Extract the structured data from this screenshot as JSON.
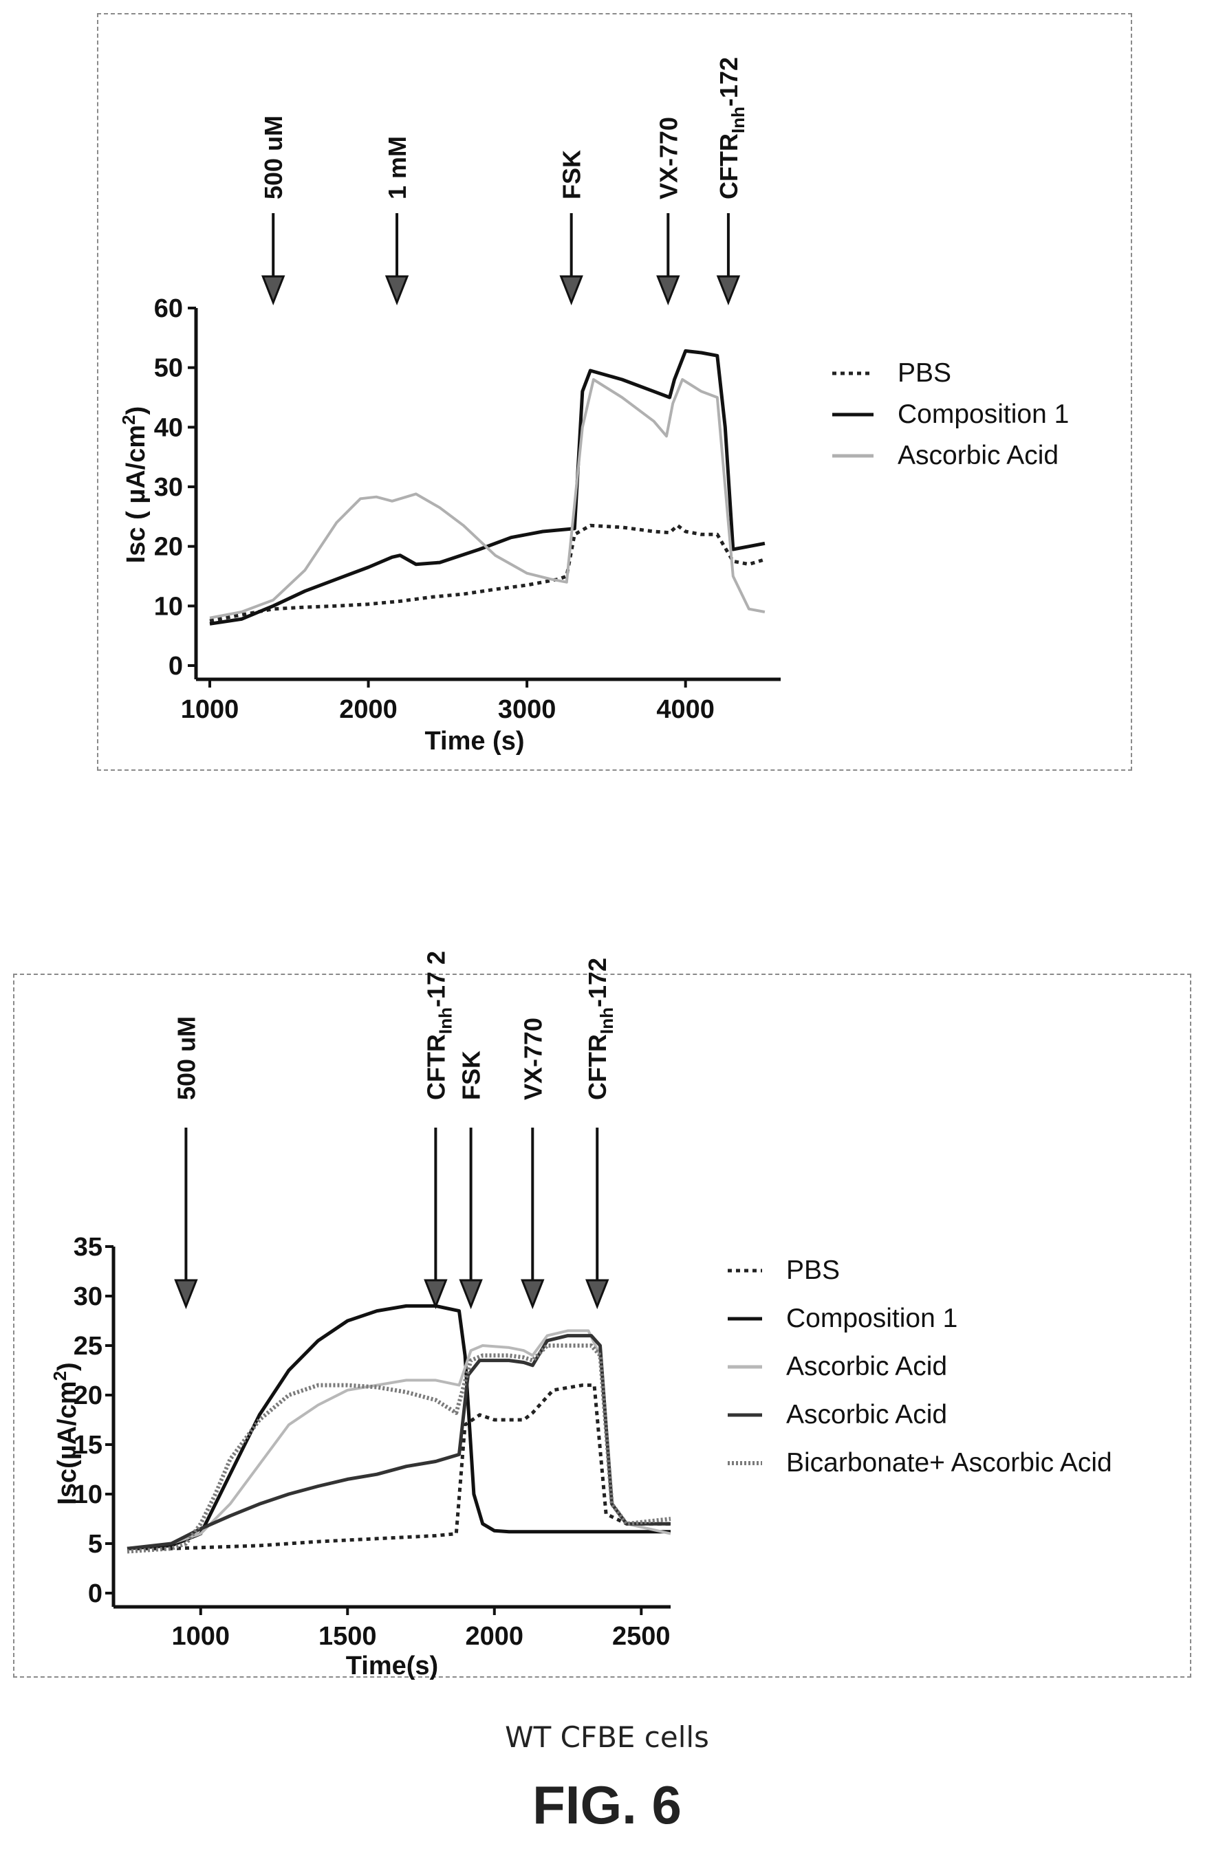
{
  "chart_data": [
    {
      "type": "line",
      "title": "",
      "xlabel": "Time (s)",
      "ylabel": "Isc ( µA/cm²)",
      "ylabel_parts": [
        "Isc ( µA/cm",
        "2",
        ")"
      ],
      "xlim": [
        1000,
        4600
      ],
      "ylim": [
        0,
        60
      ],
      "x_ticks": [
        "1000",
        "2000",
        "3000",
        "4000"
      ],
      "x_tick_values": [
        1000,
        2000,
        3000,
        4000
      ],
      "y_ticks": [
        "0",
        "10",
        "20",
        "30",
        "40",
        "50",
        "60"
      ],
      "y_tick_values": [
        0,
        10,
        20,
        30,
        40,
        50,
        60
      ],
      "grid": false,
      "legend_position": "right",
      "events": [
        {
          "label": "500 uM",
          "x": 1400
        },
        {
          "label": "1 mM",
          "x": 2180
        },
        {
          "label": "FSK",
          "x": 3280
        },
        {
          "label": "VX-770",
          "x": 3890
        },
        {
          "label": "CFTRInh-172",
          "x": 4270,
          "parts": [
            "CFTR",
            "Inh",
            "-172"
          ]
        }
      ],
      "series": [
        {
          "name": "PBS",
          "style": "dotted",
          "color": "#222222",
          "x": [
            1000,
            1200,
            1400,
            1600,
            1800,
            2000,
            2200,
            2400,
            2600,
            2800,
            3000,
            3200,
            3250,
            3300,
            3400,
            3600,
            3800,
            3900,
            3950,
            4000,
            4100,
            4200,
            4300,
            4400,
            4500
          ],
          "y": [
            7.5,
            8.5,
            9.5,
            9.8,
            10,
            10.3,
            10.8,
            11.5,
            12,
            12.8,
            13.5,
            14.5,
            15,
            22,
            23.5,
            23.2,
            22.5,
            22.3,
            23.5,
            22.5,
            22,
            22,
            17.5,
            17,
            17.8
          ]
        },
        {
          "name": "Composition 1",
          "style": "solid",
          "color": "#111111",
          "x": [
            1000,
            1200,
            1400,
            1600,
            1800,
            2000,
            2150,
            2200,
            2300,
            2450,
            2700,
            2900,
            3100,
            3300,
            3350,
            3400,
            3600,
            3800,
            3900,
            3930,
            4000,
            4100,
            4200,
            4250,
            4300,
            4400,
            4500
          ],
          "y": [
            7,
            7.8,
            10,
            12.5,
            14.5,
            16.5,
            18.2,
            18.5,
            17,
            17.3,
            19.5,
            21.5,
            22.5,
            23,
            46,
            49.5,
            48,
            46,
            45,
            48,
            52.8,
            52.5,
            52,
            40,
            19.5,
            20,
            20.5
          ]
        },
        {
          "name": "Ascorbic Acid",
          "style": "solid",
          "color": "#b0b0b0",
          "x": [
            1000,
            1200,
            1400,
            1600,
            1800,
            1950,
            2050,
            2150,
            2300,
            2450,
            2600,
            2800,
            3000,
            3150,
            3250,
            3350,
            3420,
            3600,
            3800,
            3880,
            3920,
            3980,
            4100,
            4200,
            4250,
            4300,
            4400,
            4500
          ],
          "y": [
            8,
            9,
            11,
            16,
            24,
            28,
            28.3,
            27.6,
            28.8,
            26.5,
            23.5,
            18.5,
            15.5,
            14.5,
            14,
            40,
            48,
            45,
            41,
            38.5,
            44,
            48,
            46,
            45,
            30,
            15,
            9.5,
            9
          ]
        }
      ]
    },
    {
      "type": "line",
      "title": "",
      "xlabel": "Time(s)",
      "ylabel": "Isc(µA/cm²)",
      "ylabel_parts": [
        "Isc(µA/cm",
        "2",
        ")"
      ],
      "xlim": [
        750,
        2600
      ],
      "ylim": [
        0,
        35
      ],
      "x_ticks": [
        "1000",
        "1500",
        "2000",
        "2500"
      ],
      "x_tick_values": [
        1000,
        1500,
        2000,
        2500
      ],
      "y_ticks": [
        "0",
        "5",
        "10",
        "15",
        "20",
        "25",
        "30",
        "35"
      ],
      "y_tick_values": [
        0,
        5,
        10,
        15,
        20,
        25,
        30,
        35
      ],
      "grid": false,
      "legend_position": "right",
      "events": [
        {
          "label": "500 uM",
          "x": 950
        },
        {
          "label": "CFTRInh-172",
          "x": 1800,
          "parts": [
            "CFTR",
            "Inh",
            "-17 2"
          ]
        },
        {
          "label": "FSK",
          "x": 1920
        },
        {
          "label": "VX-770",
          "x": 2130
        },
        {
          "label": "CFTRInh-172",
          "x": 2350,
          "parts": [
            "CFTR",
            "Inh",
            "-172"
          ]
        }
      ],
      "series": [
        {
          "name": "PBS",
          "style": "dotted",
          "color": "#222222",
          "x": [
            750,
            900,
            1000,
            1200,
            1400,
            1600,
            1800,
            1870,
            1900,
            1950,
            2000,
            2050,
            2100,
            2130,
            2200,
            2300,
            2340,
            2380,
            2450,
            2600
          ],
          "y": [
            4.5,
            4.5,
            4.6,
            4.8,
            5.2,
            5.5,
            5.8,
            6,
            17,
            18,
            17.5,
            17.5,
            17.5,
            18.2,
            20.5,
            21,
            21,
            8,
            7,
            7
          ]
        },
        {
          "name": "Composition 1",
          "style": "solid",
          "color": "#111111",
          "x": [
            750,
            900,
            1000,
            1100,
            1200,
            1300,
            1400,
            1500,
            1600,
            1700,
            1800,
            1880,
            1900,
            1930,
            1960,
            2000,
            2050,
            2100,
            2200,
            2300,
            2600
          ],
          "y": [
            4.5,
            4.8,
            6,
            12,
            18,
            22.5,
            25.5,
            27.5,
            28.5,
            29,
            29,
            28.5,
            24,
            10,
            7,
            6.3,
            6.2,
            6.2,
            6.2,
            6.2,
            6.2
          ]
        },
        {
          "name": "Ascorbic Acid",
          "style": "solid",
          "color": "#b8b8b8",
          "x": [
            750,
            900,
            1000,
            1100,
            1200,
            1300,
            1400,
            1500,
            1600,
            1700,
            1800,
            1880,
            1920,
            1960,
            2050,
            2100,
            2130,
            2180,
            2250,
            2320,
            2360,
            2400,
            2450,
            2600
          ],
          "y": [
            4.5,
            5,
            6,
            9,
            13,
            17,
            19,
            20.5,
            21,
            21.5,
            21.5,
            21,
            24.5,
            25,
            24.8,
            24.5,
            24,
            26,
            26.5,
            26.5,
            24,
            9,
            7,
            6
          ]
        },
        {
          "name": "Ascorbic Acid",
          "style": "solid",
          "color": "#333333",
          "x": [
            750,
            900,
            1000,
            1100,
            1200,
            1300,
            1400,
            1500,
            1600,
            1700,
            1800,
            1880,
            1910,
            1950,
            2050,
            2100,
            2130,
            2180,
            2250,
            2330,
            2360,
            2400,
            2450,
            2600
          ],
          "y": [
            4.5,
            5,
            6.5,
            7.8,
            9,
            10,
            10.8,
            11.5,
            12,
            12.8,
            13.3,
            14,
            22,
            23.5,
            23.5,
            23.3,
            23,
            25.5,
            26,
            26,
            25,
            9,
            7,
            7
          ]
        },
        {
          "name": "Bicarbonate+ Ascorbic Acid",
          "style": "hatched",
          "color": "#7a7a7a",
          "x": [
            750,
            900,
            950,
            1000,
            1050,
            1100,
            1200,
            1300,
            1400,
            1500,
            1600,
            1700,
            1800,
            1870,
            1920,
            1960,
            2050,
            2100,
            2130,
            2180,
            2250,
            2330,
            2360,
            2400,
            2450,
            2600
          ],
          "y": [
            4.2,
            4.5,
            5,
            7,
            10,
            13.5,
            17.5,
            20,
            21,
            21,
            20.8,
            20.3,
            19.5,
            18.2,
            23.5,
            24,
            24,
            23.8,
            23.5,
            25,
            25,
            25,
            24,
            9,
            7,
            7.5
          ]
        }
      ]
    }
  ],
  "caption": "WT CFBE cells",
  "figure_label": "FIG. 6"
}
